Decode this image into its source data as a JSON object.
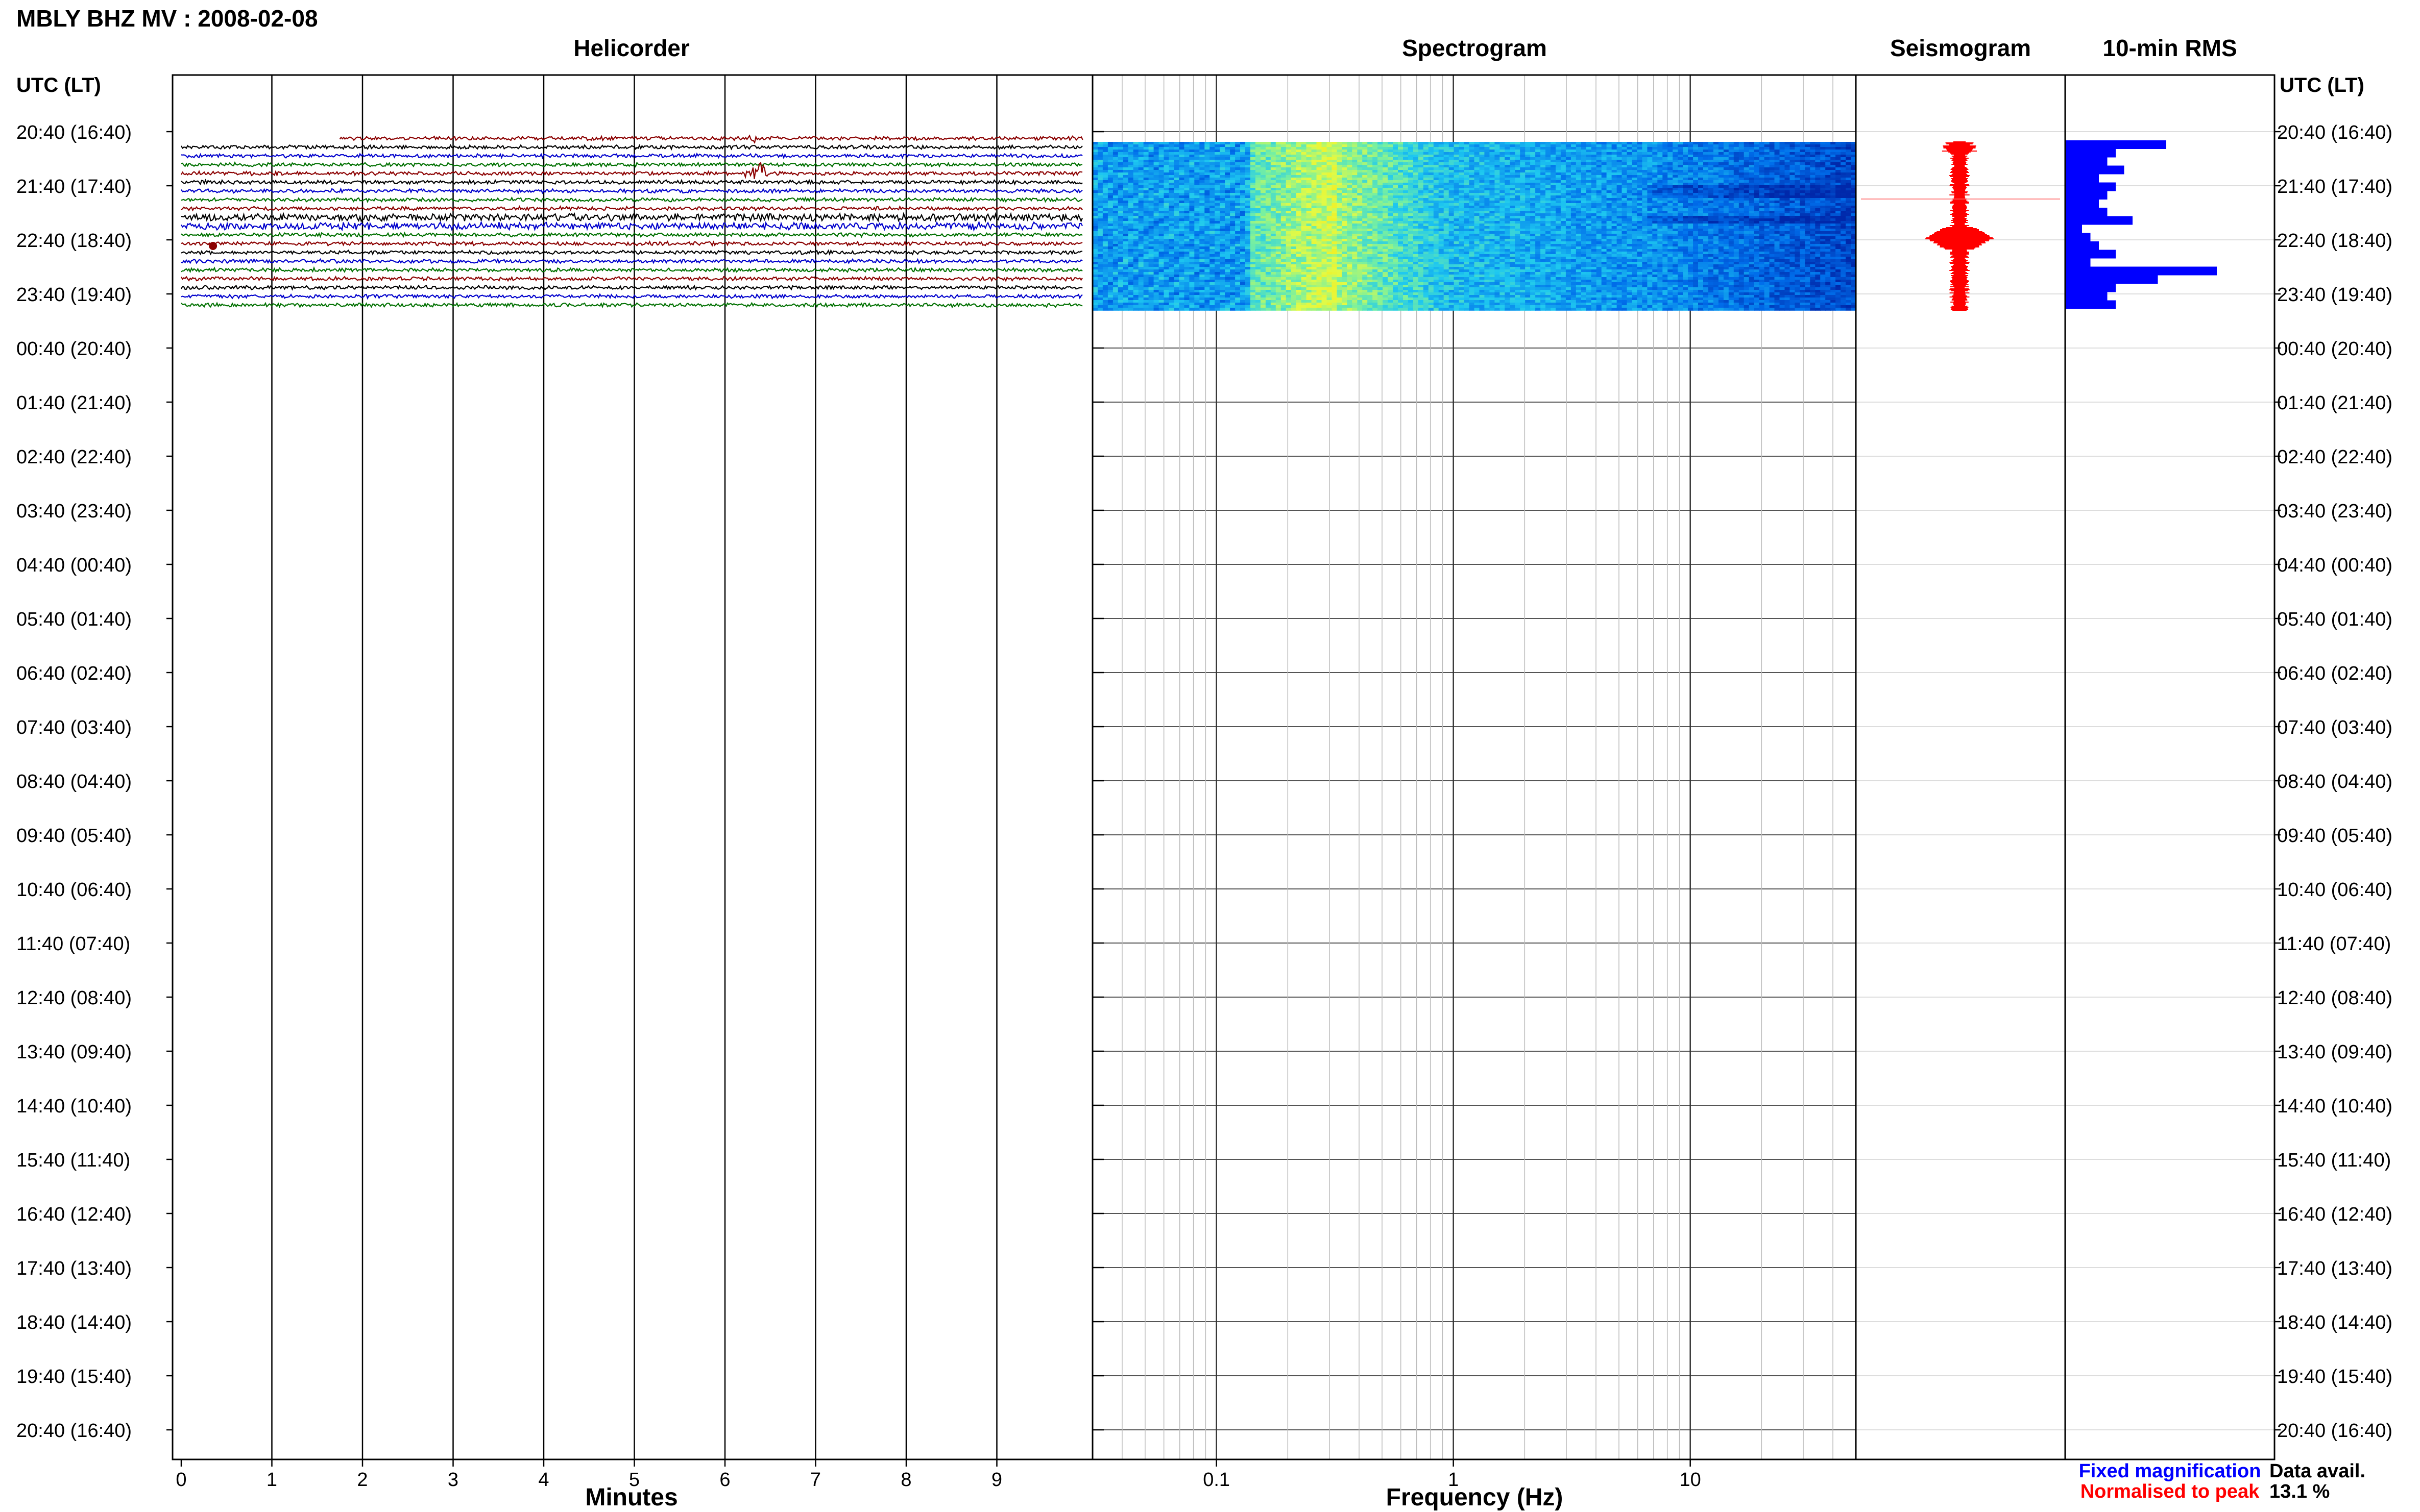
{
  "chart_data": {
    "type": "helicorder-panel",
    "title": "MBLY BHZ MV : 2008-02-08",
    "panels": {
      "helicorder": "Helicorder",
      "spectrogram": "Spectrogram",
      "seismogram": "Seismogram",
      "rms": "10-min RMS"
    },
    "utc_header": "UTC (LT)",
    "time_labels": [
      "20:40 (16:40)",
      "21:40 (17:40)",
      "22:40 (18:40)",
      "23:40 (19:40)",
      "00:40 (20:40)",
      "01:40 (21:40)",
      "02:40 (22:40)",
      "03:40 (23:40)",
      "04:40 (00:40)",
      "05:40 (01:40)",
      "06:40 (02:40)",
      "07:40 (03:40)",
      "08:40 (04:40)",
      "09:40 (05:40)",
      "10:40 (06:40)",
      "11:40 (07:40)",
      "12:40 (08:40)",
      "13:40 (09:40)",
      "14:40 (10:40)",
      "15:40 (11:40)",
      "16:40 (12:40)",
      "17:40 (13:40)",
      "18:40 (14:40)",
      "19:40 (15:40)",
      "20:40 (16:40)"
    ],
    "helicorder_x": {
      "label": "Minutes",
      "ticks": [
        "0",
        "1",
        "2",
        "3",
        "4",
        "5",
        "6",
        "7",
        "8",
        "9"
      ],
      "xlim": [
        0,
        10
      ]
    },
    "spectrogram_x": {
      "label": "Frequency (Hz)",
      "ticks": [
        "0.1",
        "1",
        "10"
      ],
      "scale": "log",
      "xlim": [
        0.03,
        50
      ]
    },
    "helicorder_traces": {
      "count": 20,
      "colors": [
        "#8b0000",
        "#000000",
        "#0000cc",
        "#007000"
      ],
      "event_minute": 6.35
    },
    "rms_values": [
      0.6,
      0.3,
      0.25,
      0.35,
      0.2,
      0.3,
      0.25,
      0.2,
      0.25,
      0.4,
      0.1,
      0.15,
      0.2,
      0.3,
      0.15,
      0.9,
      0.55,
      0.3,
      0.25,
      0.3
    ],
    "legend": {
      "fixed": "Fixed magnification",
      "normalised": "Normalised to peak",
      "fixed_color": "#0000ff",
      "normalised_color": "#ff0000"
    },
    "data_avail": {
      "label": "Data avail.",
      "value": "13.1 %"
    }
  }
}
